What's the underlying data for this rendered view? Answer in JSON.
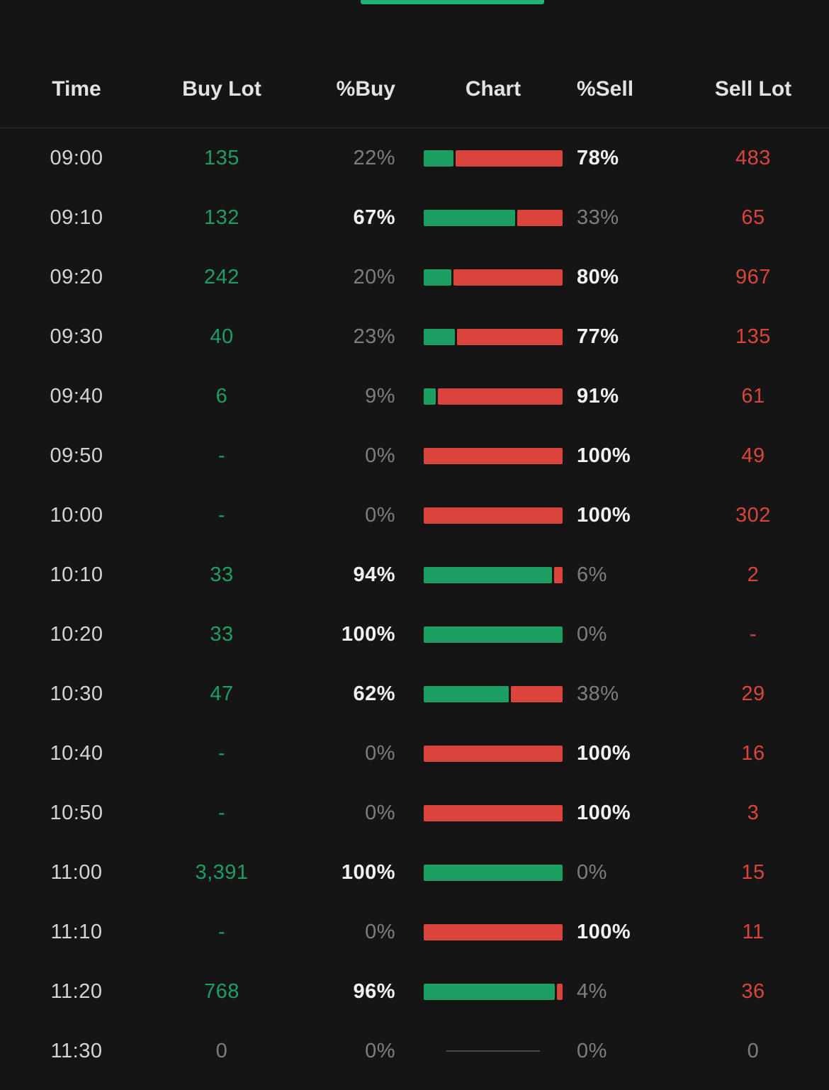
{
  "colors": {
    "buy_green": "#1d9e62",
    "sell_red": "#d9453c",
    "dim_gray": "#7e7e7e",
    "strong_white": "#f2f2f2",
    "indicator_green": "#21b573"
  },
  "table": {
    "headers": [
      "Time",
      "Buy Lot",
      "%Buy",
      "Chart",
      "%Sell",
      "Sell Lot"
    ],
    "rows": [
      {
        "time": "09:00",
        "buy_lot": "135",
        "buy_pct": "22%",
        "buy": 22,
        "sell": 78,
        "sell_pct": "78%",
        "sell_lot": "483"
      },
      {
        "time": "09:10",
        "buy_lot": "132",
        "buy_pct": "67%",
        "buy": 67,
        "sell": 33,
        "sell_pct": "33%",
        "sell_lot": "65"
      },
      {
        "time": "09:20",
        "buy_lot": "242",
        "buy_pct": "20%",
        "buy": 20,
        "sell": 80,
        "sell_pct": "80%",
        "sell_lot": "967"
      },
      {
        "time": "09:30",
        "buy_lot": "40",
        "buy_pct": "23%",
        "buy": 23,
        "sell": 77,
        "sell_pct": "77%",
        "sell_lot": "135"
      },
      {
        "time": "09:40",
        "buy_lot": "6",
        "buy_pct": "9%",
        "buy": 9,
        "sell": 91,
        "sell_pct": "91%",
        "sell_lot": "61"
      },
      {
        "time": "09:50",
        "buy_lot": "-",
        "buy_pct": "0%",
        "buy": 0,
        "sell": 100,
        "sell_pct": "100%",
        "sell_lot": "49"
      },
      {
        "time": "10:00",
        "buy_lot": "-",
        "buy_pct": "0%",
        "buy": 0,
        "sell": 100,
        "sell_pct": "100%",
        "sell_lot": "302"
      },
      {
        "time": "10:10",
        "buy_lot": "33",
        "buy_pct": "94%",
        "buy": 94,
        "sell": 6,
        "sell_pct": "6%",
        "sell_lot": "2"
      },
      {
        "time": "10:20",
        "buy_lot": "33",
        "buy_pct": "100%",
        "buy": 100,
        "sell": 0,
        "sell_pct": "0%",
        "sell_lot": "-"
      },
      {
        "time": "10:30",
        "buy_lot": "47",
        "buy_pct": "62%",
        "buy": 62,
        "sell": 38,
        "sell_pct": "38%",
        "sell_lot": "29"
      },
      {
        "time": "10:40",
        "buy_lot": "-",
        "buy_pct": "0%",
        "buy": 0,
        "sell": 100,
        "sell_pct": "100%",
        "sell_lot": "16"
      },
      {
        "time": "10:50",
        "buy_lot": "-",
        "buy_pct": "0%",
        "buy": 0,
        "sell": 100,
        "sell_pct": "100%",
        "sell_lot": "3"
      },
      {
        "time": "11:00",
        "buy_lot": "3,391",
        "buy_pct": "100%",
        "buy": 100,
        "sell": 0,
        "sell_pct": "0%",
        "sell_lot": "15"
      },
      {
        "time": "11:10",
        "buy_lot": "-",
        "buy_pct": "0%",
        "buy": 0,
        "sell": 100,
        "sell_pct": "100%",
        "sell_lot": "11"
      },
      {
        "time": "11:20",
        "buy_lot": "768",
        "buy_pct": "96%",
        "buy": 96,
        "sell": 4,
        "sell_pct": "4%",
        "sell_lot": "36"
      },
      {
        "time": "11:30",
        "buy_lot": "0",
        "buy_pct": "0%",
        "buy": 0,
        "sell": 0,
        "sell_pct": "0%",
        "sell_lot": "0"
      }
    ]
  }
}
